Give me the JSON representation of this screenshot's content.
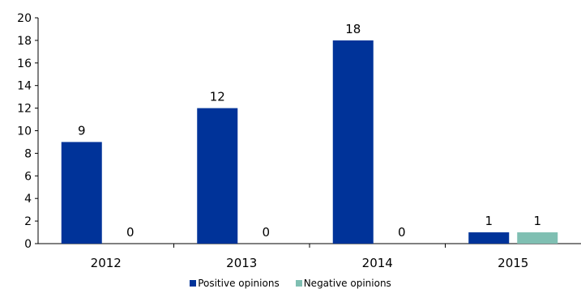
{
  "chart_data": {
    "type": "bar",
    "categories": [
      "2012",
      "2013",
      "2014",
      "2015"
    ],
    "series": [
      {
        "name": "Positive opinions",
        "values": [
          9,
          12,
          18,
          1
        ],
        "color": "#003399"
      },
      {
        "name": "Negative opinions",
        "values": [
          0,
          0,
          0,
          1
        ],
        "color": "#7fbfb2"
      }
    ],
    "ylim": [
      0,
      20
    ],
    "yticks": [
      0,
      2,
      4,
      6,
      8,
      10,
      12,
      14,
      16,
      18,
      20
    ],
    "data_labels": true,
    "grid": false,
    "legend_position": "bottom"
  }
}
